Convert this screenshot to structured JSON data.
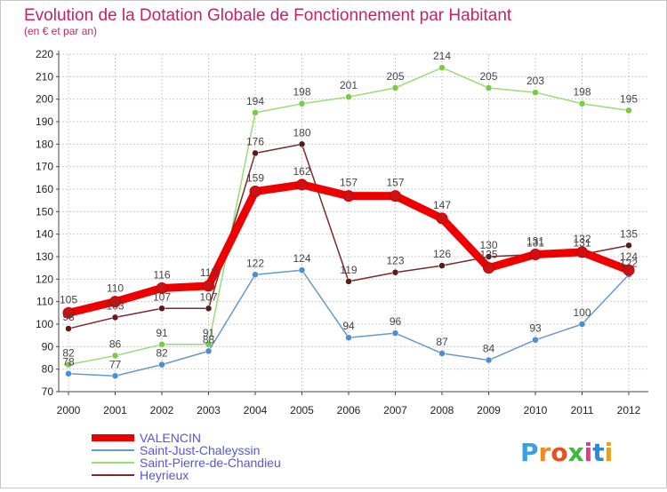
{
  "header": {
    "title": "Evolution de la Dotation Globale de Fonctionnement par Habitant",
    "subtitle": "(en € et par an)"
  },
  "logo": {
    "letters": [
      "P",
      "r",
      "o",
      "x",
      "i",
      "t",
      "i"
    ],
    "colors": [
      "#3aa0e0",
      "#f08c1e",
      "#e8501e",
      "#3cb83c",
      "#e03c8c",
      "#2a8ad8",
      "#e8a020"
    ]
  },
  "chart_data": {
    "type": "line",
    "title": "Evolution de la Dotation Globale de Fonctionnement par Habitant",
    "subtitle": "(en € et par an)",
    "xlabel": "",
    "ylabel": "",
    "x": [
      "2000",
      "2001",
      "2002",
      "2003",
      "2004",
      "2005",
      "2006",
      "2007",
      "2008",
      "2009",
      "2010",
      "2011",
      "2012"
    ],
    "ylim": [
      70,
      220
    ],
    "yticks": [
      70,
      80,
      90,
      100,
      110,
      120,
      130,
      140,
      150,
      160,
      170,
      180,
      190,
      200,
      210,
      220
    ],
    "grid": true,
    "legend_position": "bottom-left",
    "series": [
      {
        "name": "VALENCIN",
        "color": "#ee0000",
        "width": 9,
        "marker": "#cc1111",
        "values": [
          105,
          110,
          116,
          117,
          159,
          162,
          157,
          157,
          147,
          125,
          131,
          132,
          124
        ],
        "labels": [
          "105",
          "110",
          "116",
          "117",
          "159",
          "162",
          "157",
          "157",
          "147",
          "125",
          "131",
          "132",
          "124"
        ]
      },
      {
        "name": "Saint-Just-Chaleyssin",
        "color": "#6699cc",
        "width": 1.5,
        "marker": "#4b8ed6",
        "values": [
          78,
          77,
          82,
          88,
          122,
          124,
          94,
          96,
          87,
          84,
          93,
          100,
          122
        ],
        "labels": [
          "78",
          "77",
          "82",
          "88",
          "122",
          "124",
          "94",
          "96",
          "87",
          "84",
          "93",
          "100",
          "122"
        ]
      },
      {
        "name": "Saint-Pierre-de-Chandieu",
        "color": "#99dd77",
        "width": 1.5,
        "marker": "#77cc44",
        "values": [
          82,
          86,
          91,
          91,
          194,
          198,
          201,
          205,
          214,
          205,
          203,
          198,
          195
        ],
        "labels": [
          "82",
          "86",
          "91",
          "91",
          "194",
          "198",
          "201",
          "205",
          "214",
          "205",
          "203",
          "198",
          "195"
        ]
      },
      {
        "name": "Heyrieux",
        "color": "#7a2a2a",
        "width": 1.5,
        "marker": "#5c1a1a",
        "values": [
          98,
          103,
          107,
          107,
          176,
          180,
          119,
          123,
          126,
          130,
          131,
          131,
          135
        ],
        "labels": [
          "98",
          "103",
          "107",
          "107",
          "176",
          "180",
          "119",
          "123",
          "126",
          "130",
          "131",
          "131",
          "135"
        ]
      }
    ]
  }
}
